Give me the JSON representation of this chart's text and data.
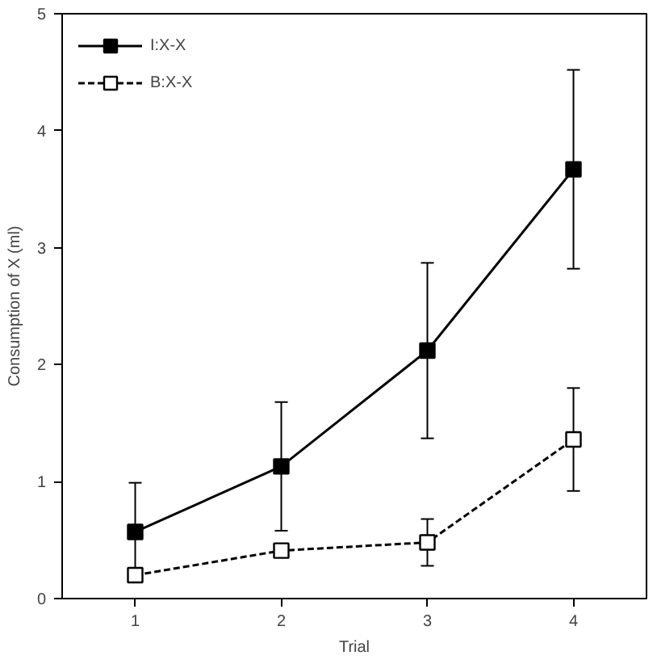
{
  "chart_data": {
    "type": "line",
    "xlabel": "Trial",
    "ylabel": "Consumption of X (ml)",
    "x": [
      1,
      2,
      3,
      4
    ],
    "xlim": [
      0.5,
      4.5
    ],
    "ylim": [
      0,
      5
    ],
    "xticks": [
      1,
      2,
      3,
      4
    ],
    "yticks": [
      0,
      1,
      2,
      3,
      4,
      5
    ],
    "marker": "square",
    "legend": "top left",
    "grid": false,
    "series": [
      {
        "name": "I:X-X",
        "color": "#000000",
        "values": [
          0.57,
          1.13,
          2.12,
          3.67
        ],
        "errors": [
          0.42,
          0.55,
          0.75,
          0.85
        ],
        "line_style": "solid"
      },
      {
        "name": "B:X-X",
        "color": "#000000",
        "values": [
          0.2,
          0.41,
          0.48,
          1.36
        ],
        "errors": [
          null,
          null,
          0.2,
          0.44
        ],
        "line_style": "dashed"
      }
    ]
  }
}
